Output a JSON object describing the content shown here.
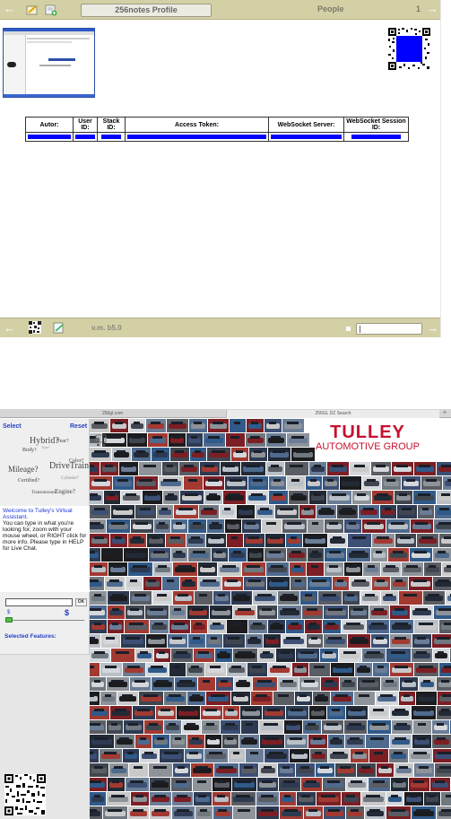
{
  "top_toolbar": {
    "title": "256notes Profile",
    "people_label": "People",
    "page_number": "1"
  },
  "info_table": {
    "headers": [
      "Autor:",
      "User ID:",
      "Stack ID:",
      "Access Token:",
      "WebSocket Server:",
      "WebSocket Session ID:"
    ]
  },
  "bottom_toolbar": {
    "version": "v.m. b5.0"
  },
  "browser_tabs": [
    "256gl.com",
    "256GL DZ Search"
  ],
  "sidebar": {
    "select_label": "Select",
    "reset_label": "Reset",
    "tag_cloud": [
      "Hybrid?",
      "Year?",
      "Body?",
      "Type?",
      "Color?",
      "DriveTrain?",
      "Mileage?",
      "Certified?",
      "Cylinder?",
      "Transmission",
      "Engine?"
    ],
    "welcome_title": "Welcome to Tulley's Virtual Assistant.",
    "welcome_body": "You can type in what you're looking for, zoom with your mouse wheel, or RIGHT click for more info. Please type in HELP for Live Chat.",
    "ok_label": "OK",
    "price_min_symbol": "$",
    "price_max_symbol": "$",
    "selected_features_label": "Selected Features:"
  },
  "brand": {
    "name": "TULLEY",
    "subtitle": "AUTOMOTIVE GROUP",
    "color": "#c8102e"
  },
  "colors": {
    "toolbar": "#d4d0a6",
    "link_blue": "#2442c6",
    "redacted_blue": "#0000ff"
  },
  "icons": {
    "back": "left-arrow-icon",
    "edit": "edit-note-icon",
    "add_note": "add-note-icon",
    "forward": "right-arrow-icon",
    "qr": "qr-code-icon",
    "cart": "shopping-cart-icon"
  }
}
